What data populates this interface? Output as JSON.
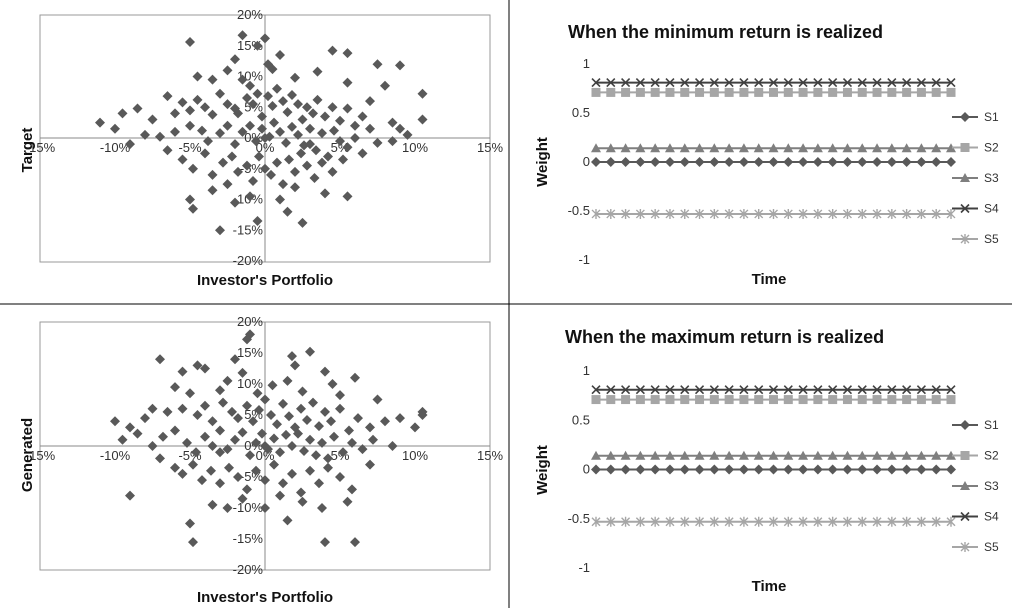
{
  "chart_data": [
    {
      "type": "scatter",
      "title": "",
      "xlabel": "Investor's Portfolio",
      "ylabel": "Target",
      "xlim": [
        -0.15,
        0.15
      ],
      "ylim": [
        -0.2,
        0.2
      ],
      "xticks": [
        "-15%",
        "-10%",
        "-5%",
        "0%",
        "5%",
        "10%",
        "15%"
      ],
      "yticks": [
        "20%",
        "15%",
        "10%",
        "5%",
        "0%",
        "-5%",
        "-10%",
        "-15%",
        "-20%"
      ],
      "grid": false,
      "marker_color": "#595959",
      "points": [
        [
          -0.05,
          0.156
        ],
        [
          -0.015,
          0.167
        ],
        [
          0.0,
          0.162
        ],
        [
          -0.005,
          0.15
        ],
        [
          0.045,
          0.142
        ],
        [
          0.055,
          0.138
        ],
        [
          0.09,
          0.118
        ],
        [
          0.075,
          0.12
        ],
        [
          -0.02,
          0.128
        ],
        [
          0.01,
          0.135
        ],
        [
          -0.025,
          0.11
        ],
        [
          0.005,
          0.112
        ],
        [
          0.035,
          0.108
        ],
        [
          -0.045,
          0.1
        ],
        [
          -0.035,
          0.095
        ],
        [
          0.02,
          0.098
        ],
        [
          0.055,
          0.09
        ],
        [
          0.08,
          0.085
        ],
        [
          0.105,
          0.072
        ],
        [
          -0.11,
          0.025
        ],
        [
          -0.095,
          0.04
        ],
        [
          -0.085,
          0.048
        ],
        [
          -0.075,
          0.03
        ],
        [
          -0.065,
          0.068
        ],
        [
          -0.055,
          0.058
        ],
        [
          -0.05,
          0.045
        ],
        [
          -0.045,
          0.062
        ],
        [
          -0.04,
          0.05
        ],
        [
          -0.035,
          0.038
        ],
        [
          -0.03,
          0.072
        ],
        [
          -0.025,
          0.055
        ],
        [
          -0.02,
          0.048
        ],
        [
          -0.018,
          0.04
        ],
        [
          -0.012,
          0.065
        ],
        [
          -0.01,
          0.085
        ],
        [
          -0.008,
          0.055
        ],
        [
          -0.005,
          0.072
        ],
        [
          -0.002,
          0.035
        ],
        [
          0.002,
          0.068
        ],
        [
          0.005,
          0.052
        ],
        [
          0.008,
          0.08
        ],
        [
          0.012,
          0.06
        ],
        [
          0.015,
          0.042
        ],
        [
          0.018,
          0.07
        ],
        [
          0.022,
          0.055
        ],
        [
          0.025,
          0.03
        ],
        [
          0.028,
          0.05
        ],
        [
          0.032,
          0.04
        ],
        [
          0.035,
          0.062
        ],
        [
          0.04,
          0.035
        ],
        [
          0.045,
          0.05
        ],
        [
          0.05,
          0.028
        ],
        [
          0.055,
          0.048
        ],
        [
          0.06,
          0.02
        ],
        [
          0.065,
          0.035
        ],
        [
          0.07,
          0.015
        ],
        [
          0.085,
          0.025
        ],
        [
          0.095,
          0.005
        ],
        [
          0.105,
          0.03
        ],
        [
          -0.1,
          0.015
        ],
        [
          -0.08,
          0.005
        ],
        [
          -0.07,
          0.002
        ],
        [
          -0.06,
          0.01
        ],
        [
          -0.05,
          0.02
        ],
        [
          -0.042,
          0.012
        ],
        [
          -0.038,
          -0.005
        ],
        [
          -0.03,
          0.008
        ],
        [
          -0.025,
          0.02
        ],
        [
          -0.02,
          -0.01
        ],
        [
          -0.015,
          0.01
        ],
        [
          -0.01,
          0.02
        ],
        [
          -0.006,
          -0.005
        ],
        [
          -0.002,
          0.015
        ],
        [
          0.003,
          0.002
        ],
        [
          0.006,
          0.025
        ],
        [
          0.01,
          0.01
        ],
        [
          0.014,
          -0.008
        ],
        [
          0.018,
          0.018
        ],
        [
          0.022,
          0.005
        ],
        [
          0.026,
          -0.012
        ],
        [
          0.03,
          0.015
        ],
        [
          0.034,
          -0.02
        ],
        [
          0.038,
          0.008
        ],
        [
          0.042,
          -0.03
        ],
        [
          0.046,
          0.012
        ],
        [
          0.05,
          -0.005
        ],
        [
          0.055,
          -0.015
        ],
        [
          0.06,
          0.0
        ],
        [
          0.065,
          -0.025
        ],
        [
          0.075,
          -0.008
        ],
        [
          0.085,
          -0.005
        ],
        [
          0.09,
          0.015
        ],
        [
          -0.09,
          -0.01
        ],
        [
          -0.065,
          -0.02
        ],
        [
          -0.055,
          -0.035
        ],
        [
          -0.048,
          -0.05
        ],
        [
          -0.04,
          -0.025
        ],
        [
          -0.035,
          -0.06
        ],
        [
          -0.028,
          -0.04
        ],
        [
          -0.022,
          -0.03
        ],
        [
          -0.018,
          -0.055
        ],
        [
          -0.012,
          -0.045
        ],
        [
          -0.008,
          -0.07
        ],
        [
          -0.004,
          -0.03
        ],
        [
          0.0,
          -0.05
        ],
        [
          0.004,
          -0.06
        ],
        [
          0.008,
          -0.04
        ],
        [
          0.012,
          -0.075
        ],
        [
          0.016,
          -0.035
        ],
        [
          0.02,
          -0.055
        ],
        [
          0.024,
          -0.025
        ],
        [
          0.028,
          -0.045
        ],
        [
          0.033,
          -0.065
        ],
        [
          0.038,
          -0.04
        ],
        [
          0.045,
          -0.055
        ],
        [
          0.052,
          -0.035
        ],
        [
          -0.05,
          -0.1
        ],
        [
          -0.048,
          -0.115
        ],
        [
          -0.035,
          -0.085
        ],
        [
          -0.03,
          -0.15
        ],
        [
          -0.02,
          -0.105
        ],
        [
          -0.01,
          -0.095
        ],
        [
          -0.005,
          -0.135
        ],
        [
          0.01,
          -0.1
        ],
        [
          0.02,
          -0.08
        ],
        [
          0.025,
          -0.138
        ],
        [
          0.04,
          -0.09
        ],
        [
          0.055,
          -0.095
        ],
        [
          0.015,
          -0.12
        ],
        [
          -0.025,
          -0.075
        ],
        [
          0.03,
          -0.01
        ],
        [
          0.0,
          0.0
        ],
        [
          -0.06,
          0.04
        ],
        [
          0.07,
          0.06
        ],
        [
          0.002,
          0.12
        ],
        [
          -0.015,
          0.095
        ]
      ]
    },
    {
      "type": "line",
      "title": "When the minimum return is realized",
      "xlabel": "Time",
      "ylabel": "Weight",
      "ylim": [
        -1,
        1
      ],
      "yticks": [
        "1",
        "0.5",
        "0",
        "-0.5",
        "-1"
      ],
      "n_points": 25,
      "legend_position": "right",
      "series": [
        {
          "name": "S1",
          "value": 0.0,
          "marker": "diamond",
          "color": "#595959"
        },
        {
          "name": "S2",
          "value": 0.71,
          "marker": "square",
          "color": "#a6a6a6"
        },
        {
          "name": "S3",
          "value": 0.14,
          "marker": "triangle",
          "color": "#7f7f7f"
        },
        {
          "name": "S4",
          "value": 0.81,
          "marker": "x",
          "color": "#404040"
        },
        {
          "name": "S5",
          "value": -0.53,
          "marker": "star",
          "color": "#a6a6a6"
        }
      ]
    },
    {
      "type": "scatter",
      "title": "",
      "xlabel": "Investor's Portfolio",
      "ylabel": "Generated",
      "xlim": [
        -0.15,
        0.15
      ],
      "ylim": [
        -0.2,
        0.2
      ],
      "xticks": [
        "-15%",
        "-10%",
        "-5%",
        "0%",
        "5%",
        "10%",
        "15%"
      ],
      "yticks": [
        "20%",
        "15%",
        "10%",
        "5%",
        "0%",
        "-5%",
        "-10%",
        "-15%",
        "-20%"
      ],
      "grid": false,
      "marker_color": "#595959",
      "points": [
        [
          -0.01,
          0.18
        ],
        [
          -0.012,
          0.172
        ],
        [
          0.03,
          0.152
        ],
        [
          -0.07,
          0.14
        ],
        [
          0.018,
          0.145
        ],
        [
          -0.045,
          0.13
        ],
        [
          -0.04,
          0.125
        ],
        [
          -0.055,
          0.12
        ],
        [
          0.04,
          0.12
        ],
        [
          0.02,
          0.13
        ],
        [
          -0.015,
          0.118
        ],
        [
          0.06,
          0.11
        ],
        [
          0.045,
          0.1
        ],
        [
          -0.025,
          0.105
        ],
        [
          0.005,
          0.098
        ],
        [
          -0.06,
          0.095
        ],
        [
          -0.05,
          0.085
        ],
        [
          -0.03,
          0.09
        ],
        [
          -0.005,
          0.085
        ],
        [
          0.025,
          0.088
        ],
        [
          0.05,
          0.082
        ],
        [
          0.075,
          0.075
        ],
        [
          0.105,
          0.055
        ],
        [
          -0.1,
          0.04
        ],
        [
          -0.09,
          0.03
        ],
        [
          -0.08,
          0.045
        ],
        [
          -0.065,
          0.055
        ],
        [
          -0.055,
          0.06
        ],
        [
          -0.045,
          0.05
        ],
        [
          -0.04,
          0.065
        ],
        [
          -0.035,
          0.04
        ],
        [
          -0.028,
          0.07
        ],
        [
          -0.022,
          0.055
        ],
        [
          -0.018,
          0.045
        ],
        [
          -0.012,
          0.065
        ],
        [
          -0.008,
          0.04
        ],
        [
          -0.004,
          0.058
        ],
        [
          0.0,
          0.075
        ],
        [
          0.004,
          0.05
        ],
        [
          0.008,
          0.035
        ],
        [
          0.012,
          0.068
        ],
        [
          0.016,
          0.048
        ],
        [
          0.02,
          0.03
        ],
        [
          0.024,
          0.06
        ],
        [
          0.028,
          0.042
        ],
        [
          0.032,
          0.07
        ],
        [
          0.036,
          0.032
        ],
        [
          0.04,
          0.055
        ],
        [
          0.044,
          0.04
        ],
        [
          0.05,
          0.06
        ],
        [
          0.056,
          0.025
        ],
        [
          0.062,
          0.045
        ],
        [
          0.07,
          0.03
        ],
        [
          0.08,
          0.04
        ],
        [
          0.09,
          0.045
        ],
        [
          0.1,
          0.03
        ],
        [
          0.105,
          0.05
        ],
        [
          -0.095,
          0.01
        ],
        [
          -0.085,
          0.02
        ],
        [
          -0.075,
          0.0
        ],
        [
          -0.068,
          0.015
        ],
        [
          -0.06,
          0.025
        ],
        [
          -0.052,
          0.005
        ],
        [
          -0.046,
          -0.01
        ],
        [
          -0.04,
          0.015
        ],
        [
          -0.035,
          0.0
        ],
        [
          -0.03,
          0.025
        ],
        [
          -0.025,
          -0.005
        ],
        [
          -0.02,
          0.01
        ],
        [
          -0.015,
          0.022
        ],
        [
          -0.01,
          -0.015
        ],
        [
          -0.006,
          0.005
        ],
        [
          -0.002,
          0.02
        ],
        [
          0.002,
          -0.005
        ],
        [
          0.006,
          0.012
        ],
        [
          0.01,
          -0.01
        ],
        [
          0.014,
          0.018
        ],
        [
          0.018,
          0.0
        ],
        [
          0.022,
          0.02
        ],
        [
          0.026,
          -0.008
        ],
        [
          0.03,
          0.01
        ],
        [
          0.034,
          -0.015
        ],
        [
          0.038,
          0.005
        ],
        [
          0.042,
          -0.02
        ],
        [
          0.046,
          0.015
        ],
        [
          0.052,
          -0.01
        ],
        [
          0.058,
          0.005
        ],
        [
          0.065,
          -0.005
        ],
        [
          0.072,
          0.01
        ],
        [
          0.085,
          0.0
        ],
        [
          -0.07,
          -0.02
        ],
        [
          -0.06,
          -0.035
        ],
        [
          -0.055,
          -0.045
        ],
        [
          -0.048,
          -0.03
        ],
        [
          -0.042,
          -0.055
        ],
        [
          -0.036,
          -0.04
        ],
        [
          -0.03,
          -0.06
        ],
        [
          -0.024,
          -0.035
        ],
        [
          -0.018,
          -0.05
        ],
        [
          -0.012,
          -0.07
        ],
        [
          -0.006,
          -0.04
        ],
        [
          0.0,
          -0.055
        ],
        [
          0.006,
          -0.03
        ],
        [
          0.012,
          -0.06
        ],
        [
          0.018,
          -0.045
        ],
        [
          0.024,
          -0.075
        ],
        [
          0.03,
          -0.04
        ],
        [
          0.036,
          -0.06
        ],
        [
          0.042,
          -0.035
        ],
        [
          0.05,
          -0.05
        ],
        [
          0.058,
          -0.07
        ],
        [
          -0.09,
          -0.08
        ],
        [
          -0.05,
          -0.125
        ],
        [
          -0.048,
          -0.155
        ],
        [
          -0.035,
          -0.095
        ],
        [
          -0.025,
          -0.1
        ],
        [
          -0.015,
          -0.085
        ],
        [
          0.0,
          -0.1
        ],
        [
          0.015,
          -0.12
        ],
        [
          0.025,
          -0.09
        ],
        [
          0.038,
          -0.1
        ],
        [
          0.055,
          -0.09
        ],
        [
          0.04,
          -0.155
        ],
        [
          0.06,
          -0.155
        ],
        [
          0.01,
          -0.08
        ],
        [
          -0.03,
          -0.01
        ],
        [
          0.0,
          0.0
        ],
        [
          0.07,
          -0.03
        ],
        [
          -0.075,
          0.06
        ],
        [
          0.015,
          0.105
        ],
        [
          -0.02,
          0.14
        ]
      ]
    },
    {
      "type": "line",
      "title": "When the maximum return is realized",
      "xlabel": "Time",
      "ylabel": "Weight",
      "ylim": [
        -1,
        1
      ],
      "yticks": [
        "1",
        "0.5",
        "0",
        "-0.5",
        "-1"
      ],
      "n_points": 25,
      "legend_position": "right",
      "series": [
        {
          "name": "S1",
          "value": 0.0,
          "marker": "diamond",
          "color": "#595959"
        },
        {
          "name": "S2",
          "value": 0.71,
          "marker": "square",
          "color": "#a6a6a6"
        },
        {
          "name": "S3",
          "value": 0.14,
          "marker": "triangle",
          "color": "#7f7f7f"
        },
        {
          "name": "S4",
          "value": 0.81,
          "marker": "x",
          "color": "#404040"
        },
        {
          "name": "S5",
          "value": -0.53,
          "marker": "star",
          "color": "#a6a6a6"
        }
      ]
    }
  ]
}
